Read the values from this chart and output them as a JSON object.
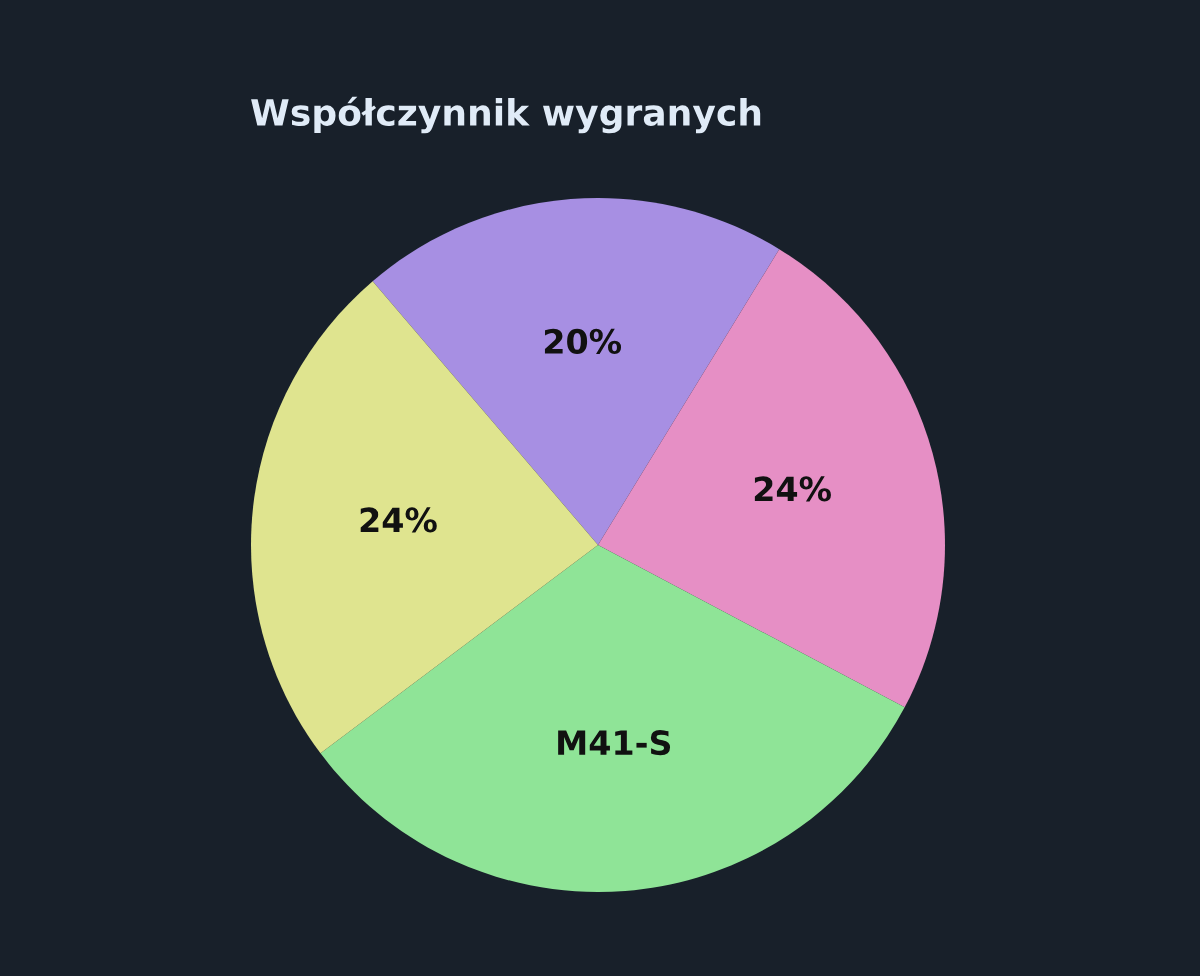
{
  "chart_data": {
    "type": "pie",
    "title": "Współczynnik wygranych",
    "categories": [
      null,
      null,
      "M41-S",
      null
    ],
    "values": [
      20,
      24,
      32,
      24
    ],
    "value_labels": [
      "20%",
      "24%",
      null,
      "24%"
    ],
    "colors": [
      "#a78fe3",
      "#e68fc5",
      "#8fe497",
      "#dfe48f"
    ]
  }
}
